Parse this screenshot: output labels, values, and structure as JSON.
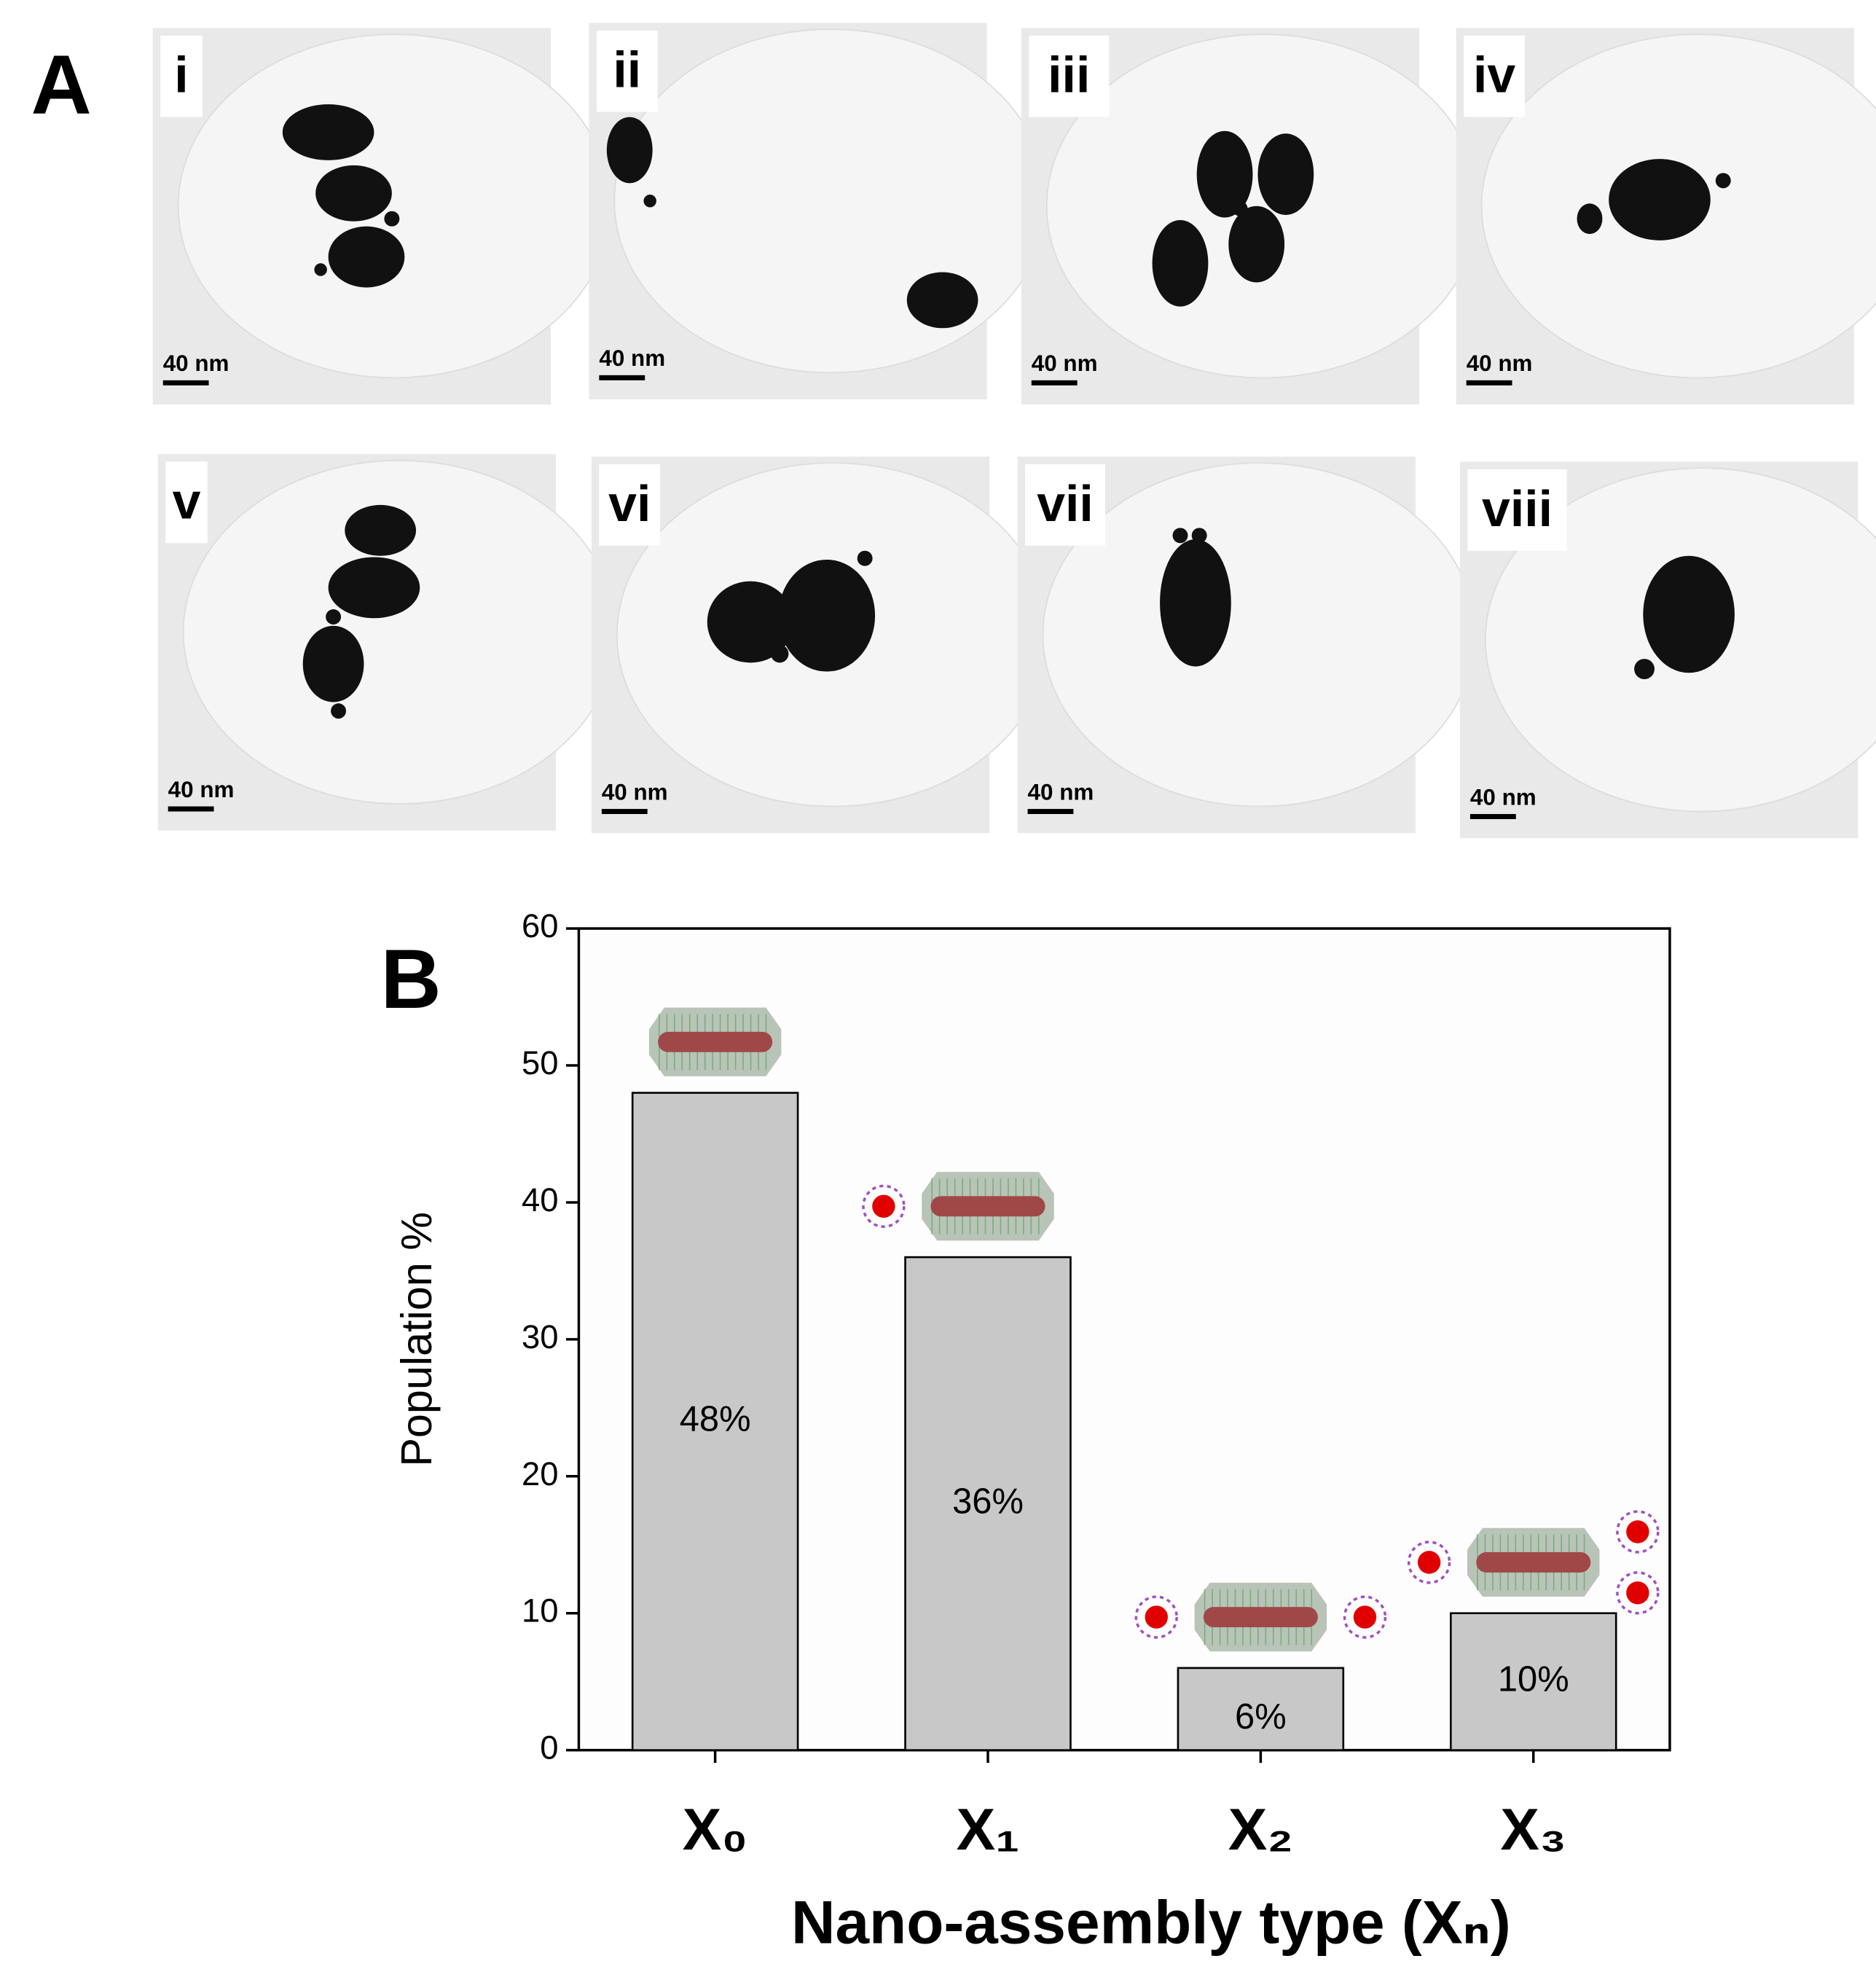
{
  "panel_a": {
    "label": "A",
    "panels": [
      {
        "label": "i",
        "scale": "40 nm"
      },
      {
        "label": "ii",
        "scale": "40 nm"
      },
      {
        "label": "iii",
        "scale": "40 nm"
      },
      {
        "label": "iv",
        "scale": "40 nm"
      },
      {
        "label": "v",
        "scale": "40 nm"
      },
      {
        "label": "vi",
        "scale": "40 nm"
      },
      {
        "label": "vii",
        "scale": "40 nm"
      },
      {
        "label": "viii",
        "scale": "40 nm"
      }
    ]
  },
  "chart_data": {
    "type": "bar",
    "label": "B",
    "categories": [
      "X₀",
      "X₁",
      "X₂",
      "X₃"
    ],
    "values": [
      48,
      36,
      6,
      10
    ],
    "value_labels": [
      "48%",
      "36%",
      "6%",
      "10%"
    ],
    "color": "#c8c8c8",
    "ylim": [
      0,
      60
    ],
    "yticks": [
      0,
      10,
      20,
      30,
      40,
      50,
      60
    ],
    "y_label": "Population %",
    "x_label": "Nano-assembly type (Xₙ)"
  }
}
